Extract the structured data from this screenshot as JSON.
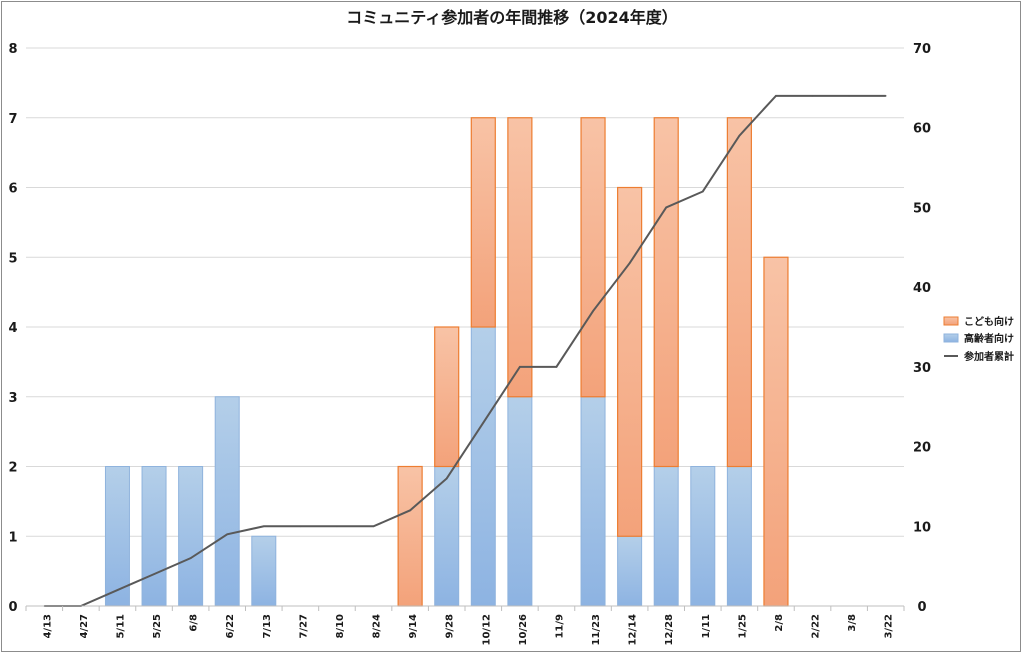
{
  "chart_data": {
    "type": "bar",
    "stacked": true,
    "title": "コミュニティ参加者の年間推移（2024年度）",
    "categories": [
      "4/13",
      "4/27",
      "5/11",
      "5/25",
      "6/8",
      "6/22",
      "7/13",
      "7/27",
      "8/10",
      "8/24",
      "9/14",
      "9/28",
      "10/12",
      "10/26",
      "11/9",
      "11/23",
      "12/14",
      "12/28",
      "1/11",
      "1/25",
      "2/8",
      "2/22",
      "3/8",
      "3/22"
    ],
    "series": [
      {
        "name": "こども向け",
        "type": "bar",
        "axis": "left",
        "color": "#f4b183",
        "values": [
          0,
          0,
          0,
          0,
          0,
          0,
          0,
          0,
          0,
          0,
          2,
          2,
          3,
          4,
          0,
          4,
          5,
          5,
          0,
          5,
          5,
          0,
          0,
          0
        ]
      },
      {
        "name": "高齢者向け",
        "type": "bar",
        "axis": "left",
        "color": "#9dc3e6",
        "values": [
          0,
          0,
          2,
          2,
          2,
          3,
          1,
          0,
          0,
          0,
          0,
          2,
          4,
          3,
          0,
          3,
          1,
          2,
          2,
          2,
          0,
          0,
          0,
          0
        ]
      },
      {
        "name": "参加者累計",
        "type": "line",
        "axis": "right",
        "color": "#595959",
        "values": [
          0,
          0,
          2,
          4,
          6,
          9,
          10,
          10,
          10,
          10,
          12,
          16,
          23,
          30,
          30,
          37,
          43,
          50,
          52,
          59,
          64,
          64,
          64,
          64
        ]
      }
    ],
    "ylim": [
      0,
      8
    ],
    "yticks": [
      0,
      1,
      2,
      3,
      4,
      5,
      6,
      7,
      8
    ],
    "y2lim": [
      0,
      70
    ],
    "y2ticks": [
      0,
      10,
      20,
      30,
      40,
      50,
      60,
      70
    ],
    "grid": true,
    "legend_position": "right"
  }
}
